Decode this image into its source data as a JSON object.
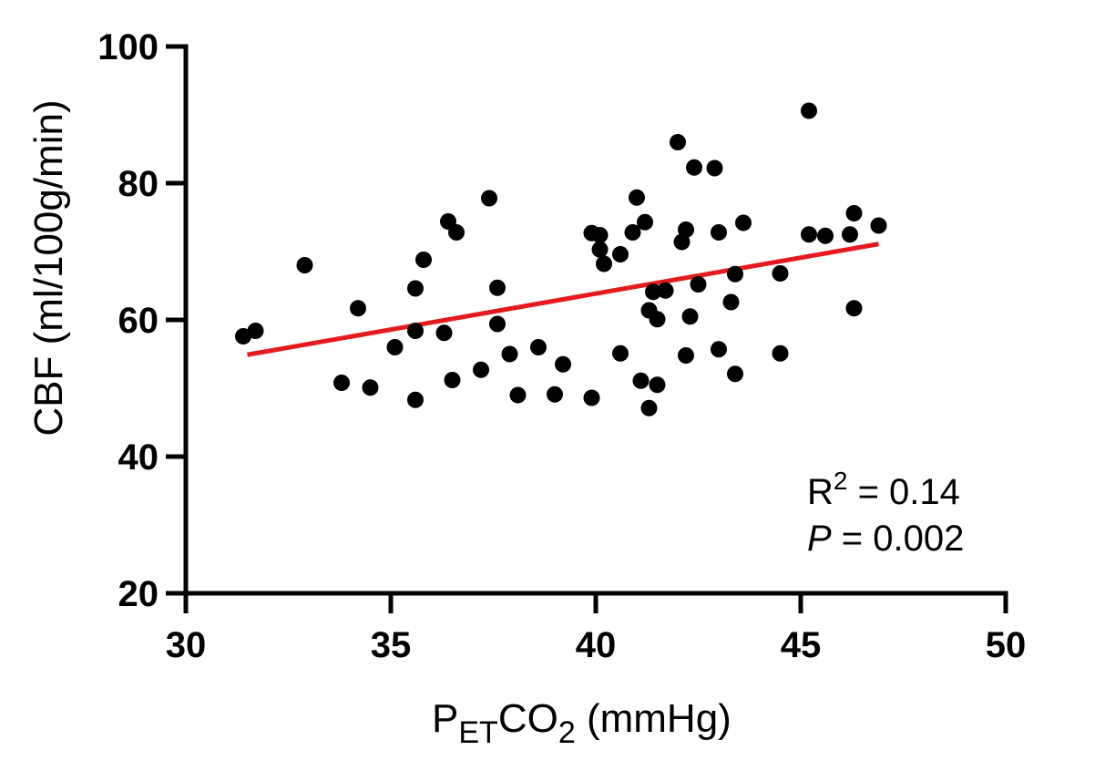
{
  "chart_data": {
    "type": "scatter",
    "xlabel": {
      "main": "P",
      "sub1": "ET",
      "mid": "CO",
      "sub2": "2",
      "tail": " (mmHg)"
    },
    "ylabel": "CBF (ml/100g/min)",
    "xlim": [
      30,
      50
    ],
    "ylim": [
      20,
      100
    ],
    "xticks": [
      30,
      35,
      40,
      45,
      50
    ],
    "yticks": [
      20,
      40,
      60,
      80,
      100
    ],
    "grid": false,
    "marker_color": "#000000",
    "fit_color": "#e41a1c",
    "fit_line": {
      "x": [
        31.5,
        46.9
      ],
      "y": [
        54.9,
        71.1
      ]
    },
    "annotation": {
      "r2_label": "R",
      "r2_sup": "2",
      "r2_value": " = 0.14",
      "p_label": "P",
      "p_value": " = 0.002"
    },
    "points": [
      {
        "x": 31.4,
        "y": 57.6
      },
      {
        "x": 31.7,
        "y": 58.4
      },
      {
        "x": 32.9,
        "y": 68.0
      },
      {
        "x": 33.8,
        "y": 50.8
      },
      {
        "x": 34.2,
        "y": 61.7
      },
      {
        "x": 34.5,
        "y": 50.1
      },
      {
        "x": 35.1,
        "y": 56.0
      },
      {
        "x": 35.6,
        "y": 48.3
      },
      {
        "x": 35.6,
        "y": 58.4
      },
      {
        "x": 35.6,
        "y": 64.6
      },
      {
        "x": 35.8,
        "y": 68.8
      },
      {
        "x": 36.3,
        "y": 58.1
      },
      {
        "x": 36.4,
        "y": 74.4
      },
      {
        "x": 36.5,
        "y": 51.2
      },
      {
        "x": 36.6,
        "y": 72.8
      },
      {
        "x": 37.2,
        "y": 52.7
      },
      {
        "x": 37.4,
        "y": 77.8
      },
      {
        "x": 37.6,
        "y": 59.4
      },
      {
        "x": 37.6,
        "y": 64.7
      },
      {
        "x": 37.9,
        "y": 55.0
      },
      {
        "x": 38.1,
        "y": 49.0
      },
      {
        "x": 38.6,
        "y": 56.0
      },
      {
        "x": 39.0,
        "y": 49.1
      },
      {
        "x": 39.2,
        "y": 53.5
      },
      {
        "x": 39.9,
        "y": 48.6
      },
      {
        "x": 39.9,
        "y": 72.7
      },
      {
        "x": 40.1,
        "y": 72.4
      },
      {
        "x": 40.1,
        "y": 70.3
      },
      {
        "x": 40.2,
        "y": 68.2
      },
      {
        "x": 40.6,
        "y": 55.1
      },
      {
        "x": 40.6,
        "y": 69.6
      },
      {
        "x": 40.9,
        "y": 72.8
      },
      {
        "x": 41.0,
        "y": 77.9
      },
      {
        "x": 41.1,
        "y": 51.1
      },
      {
        "x": 41.2,
        "y": 74.3
      },
      {
        "x": 41.3,
        "y": 61.4
      },
      {
        "x": 41.3,
        "y": 47.1
      },
      {
        "x": 41.4,
        "y": 64.1
      },
      {
        "x": 41.5,
        "y": 60.1
      },
      {
        "x": 41.5,
        "y": 50.5
      },
      {
        "x": 41.7,
        "y": 64.3
      },
      {
        "x": 42.0,
        "y": 86.0
      },
      {
        "x": 42.1,
        "y": 71.4
      },
      {
        "x": 42.2,
        "y": 73.2
      },
      {
        "x": 42.2,
        "y": 54.8
      },
      {
        "x": 42.3,
        "y": 60.5
      },
      {
        "x": 42.4,
        "y": 82.3
      },
      {
        "x": 42.5,
        "y": 65.2
      },
      {
        "x": 42.9,
        "y": 82.2
      },
      {
        "x": 43.0,
        "y": 55.7
      },
      {
        "x": 43.0,
        "y": 72.8
      },
      {
        "x": 43.3,
        "y": 62.6
      },
      {
        "x": 43.4,
        "y": 52.1
      },
      {
        "x": 43.4,
        "y": 66.7
      },
      {
        "x": 43.6,
        "y": 74.2
      },
      {
        "x": 44.5,
        "y": 66.8
      },
      {
        "x": 44.5,
        "y": 55.1
      },
      {
        "x": 45.2,
        "y": 90.6
      },
      {
        "x": 45.2,
        "y": 72.5
      },
      {
        "x": 45.6,
        "y": 72.3
      },
      {
        "x": 46.2,
        "y": 72.5
      },
      {
        "x": 46.3,
        "y": 75.6
      },
      {
        "x": 46.3,
        "y": 61.7
      },
      {
        "x": 46.9,
        "y": 73.8
      }
    ]
  }
}
